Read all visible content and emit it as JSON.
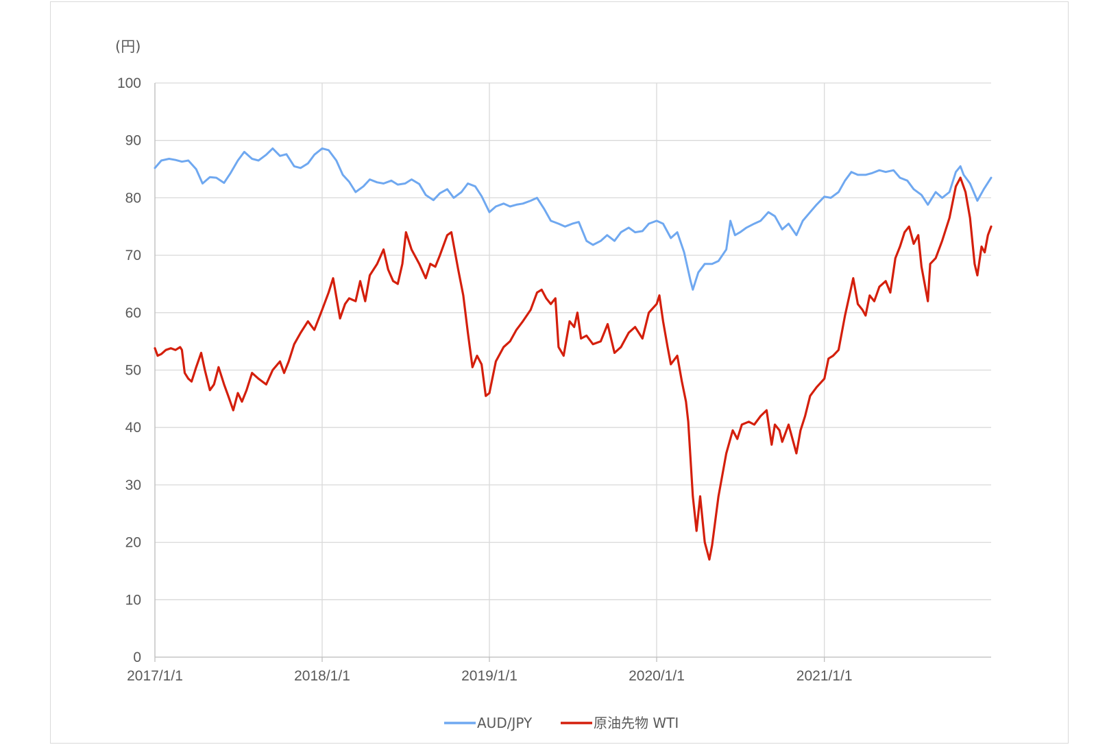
{
  "chart_data": {
    "type": "line",
    "unit_label": "(円)",
    "ylim": [
      0,
      100
    ],
    "y_ticks": [
      "0",
      "10",
      "20",
      "30",
      "40",
      "50",
      "60",
      "70",
      "80",
      "90",
      "100"
    ],
    "x_start": "2017/1/1",
    "x_end": "2021/12/31",
    "x_ticks": [
      "2017/1/1",
      "2018/1/1",
      "2019/1/1",
      "2020/1/1",
      "2021/1/1"
    ],
    "grid": true,
    "legend_position": "bottom",
    "series": [
      {
        "name": "AUD/JPY",
        "color": "#6fa8f0",
        "points": [
          [
            "2017/1/1",
            85.2
          ],
          [
            "2017/1/15",
            86.5
          ],
          [
            "2017/2/1",
            86.8
          ],
          [
            "2017/2/15",
            86.6
          ],
          [
            "2017/3/1",
            86.3
          ],
          [
            "2017/3/15",
            86.5
          ],
          [
            "2017/4/1",
            85.0
          ],
          [
            "2017/4/15",
            82.5
          ],
          [
            "2017/5/1",
            83.6
          ],
          [
            "2017/5/15",
            83.5
          ],
          [
            "2017/6/1",
            82.6
          ],
          [
            "2017/6/15",
            84.3
          ],
          [
            "2017/7/1",
            86.5
          ],
          [
            "2017/7/15",
            88.0
          ],
          [
            "2017/8/1",
            86.8
          ],
          [
            "2017/8/15",
            86.5
          ],
          [
            "2017/9/1",
            87.5
          ],
          [
            "2017/9/15",
            88.6
          ],
          [
            "2017/10/1",
            87.3
          ],
          [
            "2017/10/15",
            87.6
          ],
          [
            "2017/11/1",
            85.5
          ],
          [
            "2017/11/15",
            85.2
          ],
          [
            "2017/12/1",
            86.0
          ],
          [
            "2017/12/15",
            87.5
          ],
          [
            "2018/1/1",
            88.6
          ],
          [
            "2018/1/15",
            88.3
          ],
          [
            "2018/2/1",
            86.5
          ],
          [
            "2018/2/15",
            84.0
          ],
          [
            "2018/3/1",
            82.8
          ],
          [
            "2018/3/15",
            81.0
          ],
          [
            "2018/4/1",
            82.0
          ],
          [
            "2018/4/15",
            83.2
          ],
          [
            "2018/5/1",
            82.7
          ],
          [
            "2018/5/15",
            82.5
          ],
          [
            "2018/6/1",
            83.0
          ],
          [
            "2018/6/15",
            82.3
          ],
          [
            "2018/7/1",
            82.5
          ],
          [
            "2018/7/15",
            83.2
          ],
          [
            "2018/8/1",
            82.4
          ],
          [
            "2018/8/15",
            80.5
          ],
          [
            "2018/9/1",
            79.6
          ],
          [
            "2018/9/15",
            80.8
          ],
          [
            "2018/10/1",
            81.5
          ],
          [
            "2018/10/15",
            80.0
          ],
          [
            "2018/11/1",
            81.0
          ],
          [
            "2018/11/15",
            82.5
          ],
          [
            "2018/12/1",
            82.0
          ],
          [
            "2018/12/15",
            80.3
          ],
          [
            "2019/1/1",
            77.5
          ],
          [
            "2019/1/15",
            78.5
          ],
          [
            "2019/2/1",
            79.0
          ],
          [
            "2019/2/15",
            78.5
          ],
          [
            "2019/3/1",
            78.8
          ],
          [
            "2019/3/15",
            79.0
          ],
          [
            "2019/4/1",
            79.5
          ],
          [
            "2019/4/15",
            80.0
          ],
          [
            "2019/5/1",
            78.0
          ],
          [
            "2019/5/15",
            76.0
          ],
          [
            "2019/6/1",
            75.5
          ],
          [
            "2019/6/15",
            75.0
          ],
          [
            "2019/7/1",
            75.5
          ],
          [
            "2019/7/15",
            75.8
          ],
          [
            "2019/8/1",
            72.5
          ],
          [
            "2019/8/15",
            71.8
          ],
          [
            "2019/9/1",
            72.5
          ],
          [
            "2019/9/15",
            73.5
          ],
          [
            "2019/10/1",
            72.5
          ],
          [
            "2019/10/15",
            74.0
          ],
          [
            "2019/11/1",
            74.8
          ],
          [
            "2019/11/15",
            74.0
          ],
          [
            "2019/12/1",
            74.2
          ],
          [
            "2019/12/15",
            75.5
          ],
          [
            "2020/1/1",
            76.0
          ],
          [
            "2020/1/15",
            75.5
          ],
          [
            "2020/2/1",
            73.0
          ],
          [
            "2020/2/15",
            74.0
          ],
          [
            "2020/3/1",
            70.5
          ],
          [
            "2020/3/15",
            65.5
          ],
          [
            "2020/3/20",
            64.0
          ],
          [
            "2020/4/1",
            67.0
          ],
          [
            "2020/4/15",
            68.5
          ],
          [
            "2020/5/1",
            68.5
          ],
          [
            "2020/5/15",
            69.0
          ],
          [
            "2020/6/1",
            71.0
          ],
          [
            "2020/6/10",
            76.0
          ],
          [
            "2020/6/20",
            73.5
          ],
          [
            "2020/7/1",
            74.0
          ],
          [
            "2020/7/15",
            74.8
          ],
          [
            "2020/8/1",
            75.5
          ],
          [
            "2020/8/15",
            76.0
          ],
          [
            "2020/9/1",
            77.5
          ],
          [
            "2020/9/15",
            76.8
          ],
          [
            "2020/10/1",
            74.5
          ],
          [
            "2020/10/15",
            75.5
          ],
          [
            "2020/11/1",
            73.5
          ],
          [
            "2020/11/15",
            76.0
          ],
          [
            "2020/12/1",
            77.5
          ],
          [
            "2020/12/15",
            78.8
          ],
          [
            "2021/1/1",
            80.2
          ],
          [
            "2021/1/15",
            80.0
          ],
          [
            "2021/2/1",
            81.0
          ],
          [
            "2021/2/15",
            83.0
          ],
          [
            "2021/3/1",
            84.5
          ],
          [
            "2021/3/15",
            84.0
          ],
          [
            "2021/4/1",
            84.0
          ],
          [
            "2021/4/15",
            84.3
          ],
          [
            "2021/5/1",
            84.8
          ],
          [
            "2021/5/15",
            84.5
          ],
          [
            "2021/6/1",
            84.8
          ],
          [
            "2021/6/15",
            83.5
          ],
          [
            "2021/7/1",
            83.0
          ],
          [
            "2021/7/15",
            81.5
          ],
          [
            "2021/8/1",
            80.5
          ],
          [
            "2021/8/15",
            78.8
          ],
          [
            "2021/9/1",
            81.0
          ],
          [
            "2021/9/15",
            80.0
          ],
          [
            "2021/10/1",
            81.0
          ],
          [
            "2021/10/15",
            84.5
          ],
          [
            "2021/10/25",
            85.5
          ],
          [
            "2021/11/1",
            84.0
          ],
          [
            "2021/11/15",
            82.5
          ],
          [
            "2021/12/1",
            79.5
          ],
          [
            "2021/12/15",
            81.5
          ],
          [
            "2021/12/31",
            83.5
          ]
        ]
      },
      {
        "name": "原油先物 WTI",
        "color": "#d41f0c",
        "points": [
          [
            "2017/1/1",
            53.8
          ],
          [
            "2017/1/7",
            52.5
          ],
          [
            "2017/1/15",
            52.8
          ],
          [
            "2017/1/25",
            53.5
          ],
          [
            "2017/2/5",
            53.8
          ],
          [
            "2017/2/15",
            53.5
          ],
          [
            "2017/2/25",
            54.0
          ],
          [
            "2017/3/1",
            53.5
          ],
          [
            "2017/3/7",
            49.5
          ],
          [
            "2017/3/15",
            48.5
          ],
          [
            "2017/3/22",
            48.0
          ],
          [
            "2017/4/1",
            50.5
          ],
          [
            "2017/4/12",
            53.0
          ],
          [
            "2017/4/20",
            50.0
          ],
          [
            "2017/5/1",
            46.5
          ],
          [
            "2017/5/10",
            47.5
          ],
          [
            "2017/5/20",
            50.5
          ],
          [
            "2017/6/1",
            47.5
          ],
          [
            "2017/6/10",
            45.5
          ],
          [
            "2017/6/21",
            43.0
          ],
          [
            "2017/7/1",
            46.0
          ],
          [
            "2017/7/10",
            44.5
          ],
          [
            "2017/7/20",
            46.5
          ],
          [
            "2017/8/1",
            49.5
          ],
          [
            "2017/8/15",
            48.5
          ],
          [
            "2017/9/1",
            47.5
          ],
          [
            "2017/9/15",
            50.0
          ],
          [
            "2017/10/1",
            51.5
          ],
          [
            "2017/10/10",
            49.5
          ],
          [
            "2017/10/20",
            51.5
          ],
          [
            "2017/11/1",
            54.5
          ],
          [
            "2017/11/15",
            56.5
          ],
          [
            "2017/12/1",
            58.5
          ],
          [
            "2017/12/15",
            57.0
          ],
          [
            "2018/1/1",
            60.5
          ],
          [
            "2018/1/15",
            63.5
          ],
          [
            "2018/1/25",
            66.0
          ],
          [
            "2018/2/9",
            59.0
          ],
          [
            "2018/2/20",
            61.5
          ],
          [
            "2018/3/1",
            62.5
          ],
          [
            "2018/3/15",
            62.0
          ],
          [
            "2018/3/25",
            65.5
          ],
          [
            "2018/4/5",
            62.0
          ],
          [
            "2018/4/15",
            66.5
          ],
          [
            "2018/5/1",
            68.5
          ],
          [
            "2018/5/15",
            71.0
          ],
          [
            "2018/5/25",
            67.5
          ],
          [
            "2018/6/5",
            65.5
          ],
          [
            "2018/6/15",
            65.0
          ],
          [
            "2018/6/25",
            68.5
          ],
          [
            "2018/7/3",
            74.0
          ],
          [
            "2018/7/15",
            71.0
          ],
          [
            "2018/8/1",
            68.5
          ],
          [
            "2018/8/15",
            66.0
          ],
          [
            "2018/8/25",
            68.5
          ],
          [
            "2018/9/5",
            68.0
          ],
          [
            "2018/9/15",
            70.0
          ],
          [
            "2018/10/1",
            73.5
          ],
          [
            "2018/10/10",
            74.0
          ],
          [
            "2018/10/25",
            67.5
          ],
          [
            "2018/11/5",
            63.0
          ],
          [
            "2018/11/15",
            56.5
          ],
          [
            "2018/11/25",
            50.5
          ],
          [
            "2018/12/5",
            52.5
          ],
          [
            "2018/12/15",
            51.0
          ],
          [
            "2018/12/24",
            45.5
          ],
          [
            "2019/1/1",
            46.0
          ],
          [
            "2019/1/15",
            51.5
          ],
          [
            "2019/2/1",
            54.0
          ],
          [
            "2019/2/15",
            55.0
          ],
          [
            "2019/3/1",
            57.0
          ],
          [
            "2019/3/15",
            58.5
          ],
          [
            "2019/4/1",
            60.5
          ],
          [
            "2019/4/15",
            63.5
          ],
          [
            "2019/4/25",
            64.0
          ],
          [
            "2019/5/5",
            62.5
          ],
          [
            "2019/5/15",
            61.5
          ],
          [
            "2019/5/25",
            62.5
          ],
          [
            "2019/6/1",
            54.0
          ],
          [
            "2019/6/12",
            52.5
          ],
          [
            "2019/6/25",
            58.5
          ],
          [
            "2019/7/5",
            57.5
          ],
          [
            "2019/7/12",
            60.0
          ],
          [
            "2019/7/20",
            55.5
          ],
          [
            "2019/8/1",
            56.0
          ],
          [
            "2019/8/15",
            54.5
          ],
          [
            "2019/9/1",
            55.0
          ],
          [
            "2019/9/16",
            58.0
          ],
          [
            "2019/10/1",
            53.0
          ],
          [
            "2019/10/15",
            54.0
          ],
          [
            "2019/11/1",
            56.5
          ],
          [
            "2019/11/15",
            57.5
          ],
          [
            "2019/12/1",
            55.5
          ],
          [
            "2019/12/15",
            60.0
          ],
          [
            "2020/1/1",
            61.5
          ],
          [
            "2020/1/7",
            63.0
          ],
          [
            "2020/1/15",
            58.5
          ],
          [
            "2020/1/25",
            54.0
          ],
          [
            "2020/2/1",
            51.0
          ],
          [
            "2020/2/15",
            52.5
          ],
          [
            "2020/2/25",
            48.0
          ],
          [
            "2020/3/5",
            44.5
          ],
          [
            "2020/3/10",
            41.0
          ],
          [
            "2020/3/20",
            28.0
          ],
          [
            "2020/3/28",
            22.0
          ],
          [
            "2020/4/5",
            28.0
          ],
          [
            "2020/4/15",
            20.0
          ],
          [
            "2020/4/25",
            17.0
          ],
          [
            "2020/5/1",
            19.5
          ],
          [
            "2020/5/15",
            28.0
          ],
          [
            "2020/6/1",
            35.5
          ],
          [
            "2020/6/15",
            39.5
          ],
          [
            "2020/6/25",
            38.0
          ],
          [
            "2020/7/5",
            40.5
          ],
          [
            "2020/7/20",
            41.0
          ],
          [
            "2020/8/1",
            40.5
          ],
          [
            "2020/8/15",
            42.0
          ],
          [
            "2020/8/28",
            43.0
          ],
          [
            "2020/9/8",
            37.0
          ],
          [
            "2020/9/15",
            40.5
          ],
          [
            "2020/9/25",
            39.5
          ],
          [
            "2020/10/1",
            37.5
          ],
          [
            "2020/10/15",
            40.5
          ],
          [
            "2020/11/1",
            35.5
          ],
          [
            "2020/11/10",
            39.5
          ],
          [
            "2020/11/20",
            42.0
          ],
          [
            "2020/12/1",
            45.5
          ],
          [
            "2020/12/15",
            47.0
          ],
          [
            "2021/1/1",
            48.5
          ],
          [
            "2021/1/10",
            52.0
          ],
          [
            "2021/1/20",
            52.5
          ],
          [
            "2021/2/1",
            53.5
          ],
          [
            "2021/2/15",
            59.5
          ],
          [
            "2021/3/5",
            66.0
          ],
          [
            "2021/3/15",
            61.5
          ],
          [
            "2021/3/25",
            60.5
          ],
          [
            "2021/4/1",
            59.5
          ],
          [
            "2021/4/10",
            63.0
          ],
          [
            "2021/4/20",
            62.0
          ],
          [
            "2021/5/1",
            64.5
          ],
          [
            "2021/5/15",
            65.5
          ],
          [
            "2021/5/25",
            63.5
          ],
          [
            "2021/6/5",
            69.5
          ],
          [
            "2021/6/15",
            71.5
          ],
          [
            "2021/6/25",
            74.0
          ],
          [
            "2021/7/5",
            75.0
          ],
          [
            "2021/7/15",
            72.0
          ],
          [
            "2021/7/25",
            73.5
          ],
          [
            "2021/8/1",
            68.0
          ],
          [
            "2021/8/15",
            62.0
          ],
          [
            "2021/8/20",
            68.5
          ],
          [
            "2021/9/1",
            69.5
          ],
          [
            "2021/9/15",
            72.5
          ],
          [
            "2021/10/1",
            76.5
          ],
          [
            "2021/10/15",
            82.0
          ],
          [
            "2021/10/25",
            83.5
          ],
          [
            "2021/11/5",
            81.0
          ],
          [
            "2021/11/15",
            76.5
          ],
          [
            "2021/11/25",
            68.5
          ],
          [
            "2021/12/1",
            66.5
          ],
          [
            "2021/12/10",
            71.5
          ],
          [
            "2021/12/17",
            70.5
          ],
          [
            "2021/12/24",
            73.5
          ],
          [
            "2021/12/31",
            75.0
          ]
        ]
      }
    ]
  }
}
